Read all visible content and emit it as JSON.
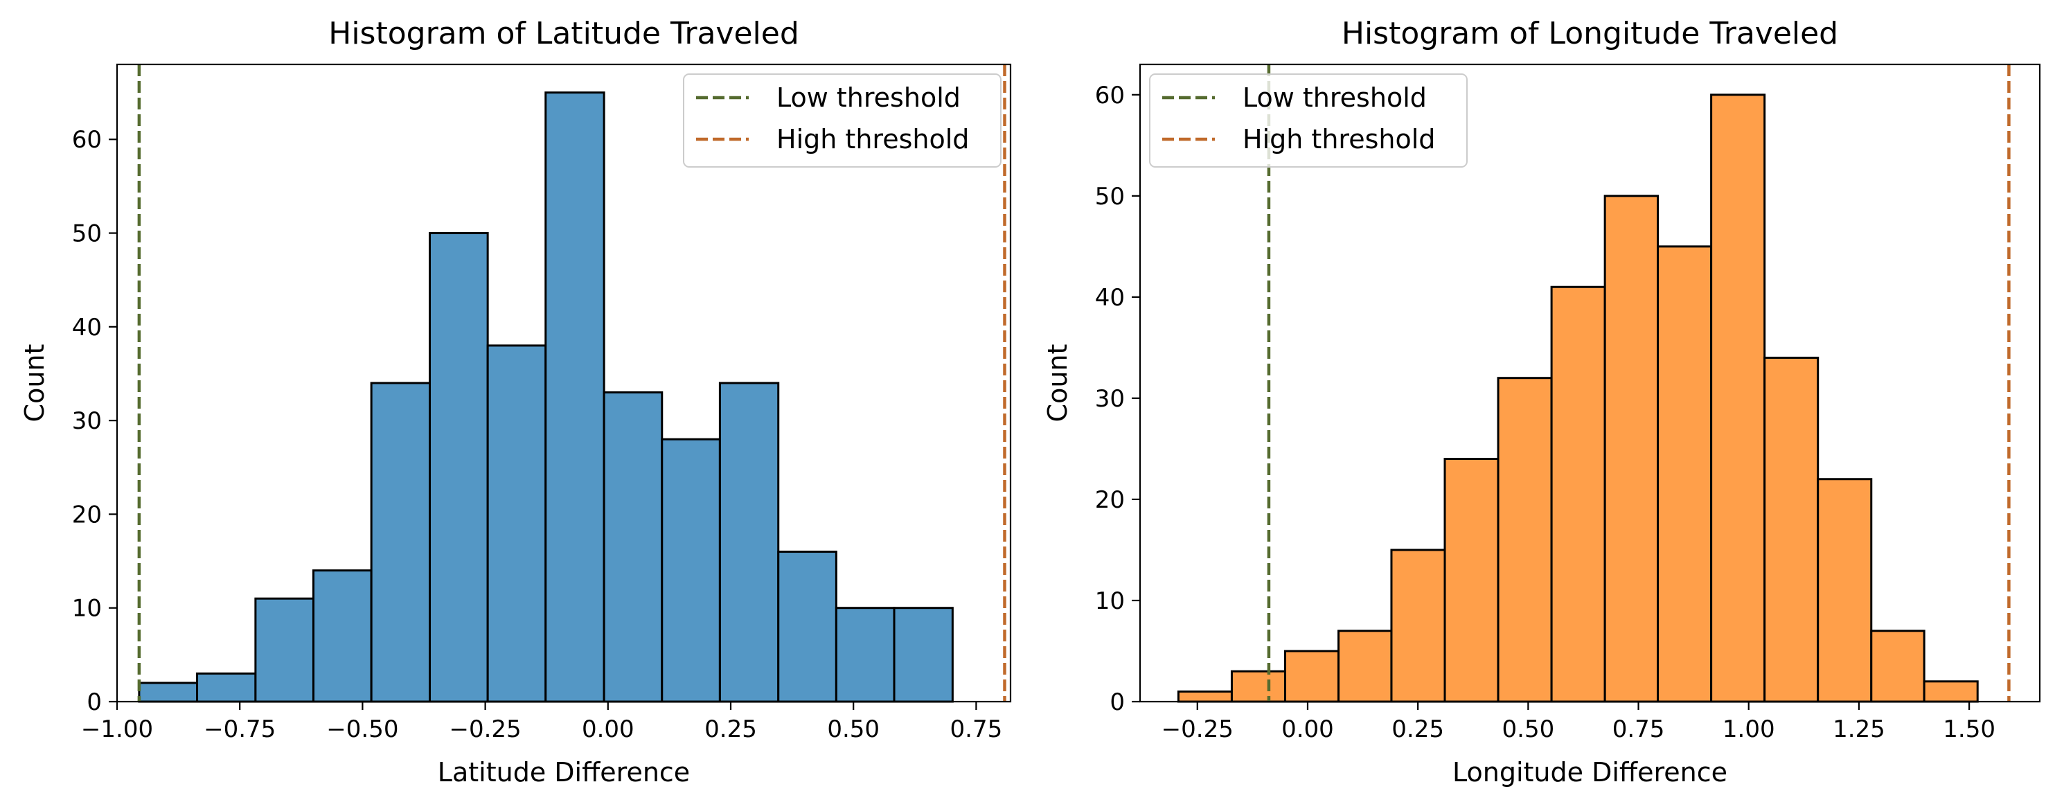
{
  "chart_data": [
    {
      "type": "bar",
      "title": "Histogram of Latitude Traveled",
      "xlabel": "Latitude Difference",
      "ylabel": "Count",
      "xlim": [
        -1.0,
        0.82
      ],
      "ylim": [
        0,
        68
      ],
      "xticks": [
        -1.0,
        -0.75,
        -0.5,
        -0.25,
        0.0,
        0.25,
        0.5,
        0.75
      ],
      "xtick_labels": [
        "−1.00",
        "−0.75",
        "−0.50",
        "−0.25",
        "0.00",
        "0.25",
        "0.50",
        "0.75"
      ],
      "yticks": [
        0,
        10,
        20,
        30,
        40,
        50,
        60
      ],
      "yticks_labels": [
        "0",
        "10",
        "20",
        "30",
        "40",
        "50",
        "60"
      ],
      "bin_edges": [
        -0.955,
        -0.837,
        -0.718,
        -0.6,
        -0.482,
        -0.363,
        -0.245,
        -0.127,
        -0.008,
        0.11,
        0.228,
        0.347,
        0.465,
        0.583,
        0.702
      ],
      "counts": [
        2,
        3,
        11,
        14,
        34,
        50,
        38,
        65,
        33,
        28,
        34,
        16,
        10,
        10
      ],
      "bar_color": "#5497c5",
      "thresholds": [
        {
          "name": "Low threshold",
          "value": -0.955,
          "color": "#556b2f"
        },
        {
          "name": "High threshold",
          "value": 0.808,
          "color": "#c06a2b"
        }
      ],
      "legend_position": "upper right"
    },
    {
      "type": "bar",
      "title": "Histogram of Longitude Traveled",
      "xlabel": "Longitude Difference",
      "ylabel": "Count",
      "xlim": [
        -0.38,
        1.66
      ],
      "ylim": [
        0,
        63
      ],
      "xticks": [
        -0.25,
        0.0,
        0.25,
        0.5,
        0.75,
        1.0,
        1.25,
        1.5
      ],
      "xtick_labels": [
        "−0.25",
        "0.00",
        "0.25",
        "0.50",
        "0.75",
        "1.00",
        "1.25",
        "1.50"
      ],
      "yticks": [
        0,
        10,
        20,
        30,
        40,
        50,
        60
      ],
      "yticks_labels": [
        "0",
        "10",
        "20",
        "30",
        "40",
        "50",
        "60"
      ],
      "bin_edges": [
        -0.293,
        -0.172,
        -0.051,
        0.07,
        0.19,
        0.311,
        0.432,
        0.553,
        0.674,
        0.794,
        0.915,
        1.036,
        1.157,
        1.278,
        1.398,
        1.519
      ],
      "counts": [
        1,
        3,
        5,
        7,
        15,
        24,
        32,
        41,
        50,
        45,
        60,
        34,
        22,
        7,
        2
      ],
      "bar_color": "#ff9f4a",
      "thresholds": [
        {
          "name": "Low threshold",
          "value": -0.088,
          "color": "#556b2f"
        },
        {
          "name": "High threshold",
          "value": 1.59,
          "color": "#c06a2b"
        }
      ],
      "legend_position": "upper left"
    }
  ]
}
